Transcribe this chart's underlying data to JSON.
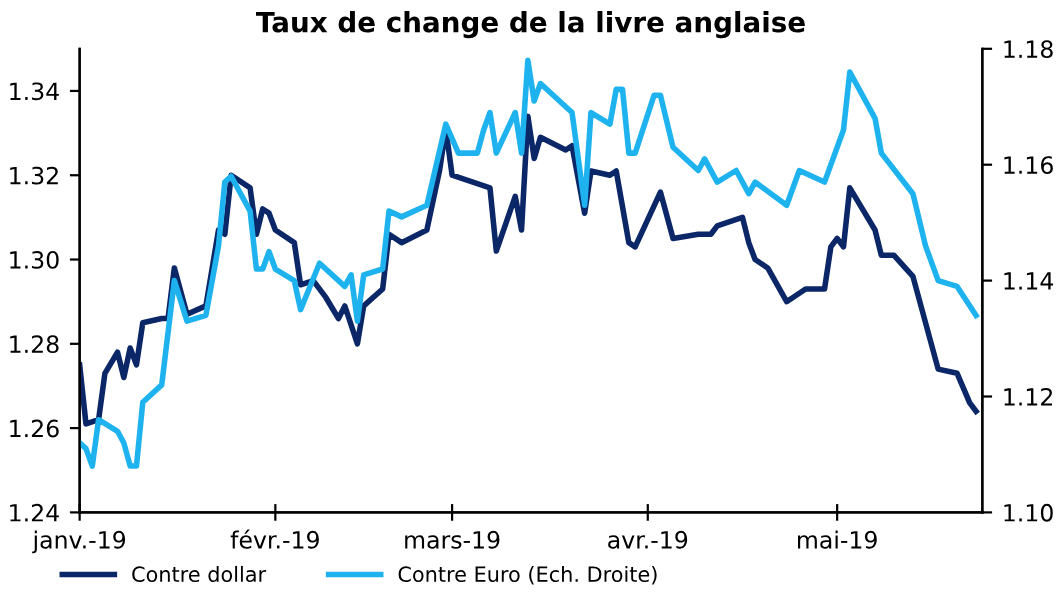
{
  "chart_data": {
    "type": "line",
    "title": "Taux de change de la livre anglaise",
    "xlim": [
      "2019-01-01",
      "2019-05-24"
    ],
    "xticks": [
      {
        "value": "2019-01-01",
        "label": "janv.-19"
      },
      {
        "value": "2019-02-01",
        "label": "févr.-19"
      },
      {
        "value": "2019-03-01",
        "label": "mars-19"
      },
      {
        "value": "2019-04-01",
        "label": "avr.-19"
      },
      {
        "value": "2019-05-01",
        "label": "mai-19"
      }
    ],
    "ylim": [
      1.24,
      1.35
    ],
    "yticks": [
      1.24,
      1.26,
      1.28,
      {
        "value": 1.3,
        "label": "1.30"
      },
      1.32,
      1.34
    ],
    "y2lim": [
      1.1,
      1.18
    ],
    "y2ticks": [
      {
        "value": 1.1,
        "label": "1.10"
      },
      1.12,
      1.14,
      1.16,
      1.18
    ],
    "grid": false,
    "legend": "bottom",
    "marker": "none",
    "line_style": "solid",
    "series": [
      {
        "name": "Contre dollar",
        "color": "#0b2767",
        "x": [
          "2019-01-01",
          "2019-01-02",
          "2019-01-04",
          "2019-01-05",
          "2019-01-07",
          "2019-01-08",
          "2019-01-09",
          "2019-01-10",
          "2019-01-11",
          "2019-01-14",
          "2019-01-15",
          "2019-01-16",
          "2019-01-18",
          "2019-01-21",
          "2019-01-23",
          "2019-01-24",
          "2019-01-25",
          "2019-01-28",
          "2019-01-29",
          "2019-01-30",
          "2019-01-31",
          "2019-02-01",
          "2019-02-04",
          "2019-02-05",
          "2019-02-07",
          "2019-02-09",
          "2019-02-11",
          "2019-02-12",
          "2019-02-14",
          "2019-02-15",
          "2019-02-18",
          "2019-02-19",
          "2019-02-21",
          "2019-02-25",
          "2019-02-27",
          "2019-02-28",
          "2019-03-01",
          "2019-03-07",
          "2019-03-08",
          "2019-03-11",
          "2019-03-12",
          "2019-03-13",
          "2019-03-14",
          "2019-03-15",
          "2019-03-19",
          "2019-03-20",
          "2019-03-22",
          "2019-03-23",
          "2019-03-26",
          "2019-03-27",
          "2019-03-29",
          "2019-03-30",
          "2019-04-03",
          "2019-04-05",
          "2019-04-09",
          "2019-04-11",
          "2019-04-12",
          "2019-04-16",
          "2019-04-17",
          "2019-04-18",
          "2019-04-20",
          "2019-04-23",
          "2019-04-24",
          "2019-04-26",
          "2019-04-29",
          "2019-04-30",
          "2019-05-01",
          "2019-05-02",
          "2019-05-03",
          "2019-05-07",
          "2019-05-08",
          "2019-05-10",
          "2019-05-13",
          "2019-05-17",
          "2019-05-20",
          "2019-05-22",
          "2019-05-23"
        ],
        "values": [
          1.275,
          1.261,
          1.262,
          1.273,
          1.278,
          1.272,
          1.279,
          1.275,
          1.285,
          1.286,
          1.286,
          1.298,
          1.287,
          1.289,
          1.307,
          1.306,
          1.32,
          1.317,
          1.306,
          1.312,
          1.311,
          1.307,
          1.304,
          1.294,
          1.295,
          1.291,
          1.286,
          1.289,
          1.28,
          1.289,
          1.293,
          1.306,
          1.304,
          1.307,
          1.321,
          1.331,
          1.32,
          1.317,
          1.302,
          1.315,
          1.307,
          1.334,
          1.324,
          1.329,
          1.326,
          1.327,
          1.311,
          1.321,
          1.32,
          1.321,
          1.304,
          1.303,
          1.316,
          1.305,
          1.306,
          1.306,
          1.308,
          1.31,
          1.304,
          1.3,
          1.298,
          1.29,
          1.291,
          1.293,
          1.293,
          1.303,
          1.305,
          1.303,
          1.317,
          1.307,
          1.301,
          1.301,
          1.296,
          1.274,
          1.273,
          1.266,
          1.264
        ]
      },
      {
        "name": "Contre Euro (Ech. Droite)",
        "color": "#1eb3ef",
        "axis": "y2",
        "x": [
          "2019-01-01",
          "2019-01-02",
          "2019-01-03",
          "2019-01-04",
          "2019-01-07",
          "2019-01-08",
          "2019-01-09",
          "2019-01-10",
          "2019-01-11",
          "2019-01-14",
          "2019-01-16",
          "2019-01-18",
          "2019-01-21",
          "2019-01-23",
          "2019-01-24",
          "2019-01-25",
          "2019-01-28",
          "2019-01-29",
          "2019-01-30",
          "2019-01-31",
          "2019-02-01",
          "2019-02-04",
          "2019-02-05",
          "2019-02-08",
          "2019-02-12",
          "2019-02-13",
          "2019-02-14",
          "2019-02-15",
          "2019-02-18",
          "2019-02-19",
          "2019-02-21",
          "2019-02-25",
          "2019-02-28",
          "2019-03-02",
          "2019-03-05",
          "2019-03-06",
          "2019-03-07",
          "2019-03-08",
          "2019-03-11",
          "2019-03-12",
          "2019-03-13",
          "2019-03-14",
          "2019-03-15",
          "2019-03-19",
          "2019-03-20",
          "2019-03-22",
          "2019-03-23",
          "2019-03-26",
          "2019-03-27",
          "2019-03-28",
          "2019-03-29",
          "2019-03-30",
          "2019-04-02",
          "2019-04-03",
          "2019-04-05",
          "2019-04-09",
          "2019-04-10",
          "2019-04-12",
          "2019-04-15",
          "2019-04-17",
          "2019-04-18",
          "2019-04-23",
          "2019-04-25",
          "2019-04-29",
          "2019-05-02",
          "2019-05-03",
          "2019-05-07",
          "2019-05-08",
          "2019-05-13",
          "2019-05-15",
          "2019-05-17",
          "2019-05-20",
          "2019-05-23"
        ],
        "values": [
          1.112,
          1.111,
          1.108,
          1.116,
          1.114,
          1.112,
          1.108,
          1.108,
          1.119,
          1.122,
          1.14,
          1.133,
          1.134,
          1.146,
          1.157,
          1.158,
          1.152,
          1.142,
          1.142,
          1.145,
          1.142,
          1.14,
          1.135,
          1.143,
          1.139,
          1.141,
          1.133,
          1.141,
          1.142,
          1.152,
          1.151,
          1.153,
          1.167,
          1.162,
          1.162,
          1.166,
          1.169,
          1.162,
          1.169,
          1.162,
          1.178,
          1.171,
          1.174,
          1.17,
          1.169,
          1.153,
          1.169,
          1.167,
          1.173,
          1.173,
          1.162,
          1.162,
          1.172,
          1.172,
          1.163,
          1.159,
          1.161,
          1.157,
          1.159,
          1.155,
          1.157,
          1.153,
          1.159,
          1.157,
          1.166,
          1.176,
          1.168,
          1.162,
          1.155,
          1.146,
          1.14,
          1.139,
          1.134
        ]
      }
    ]
  }
}
